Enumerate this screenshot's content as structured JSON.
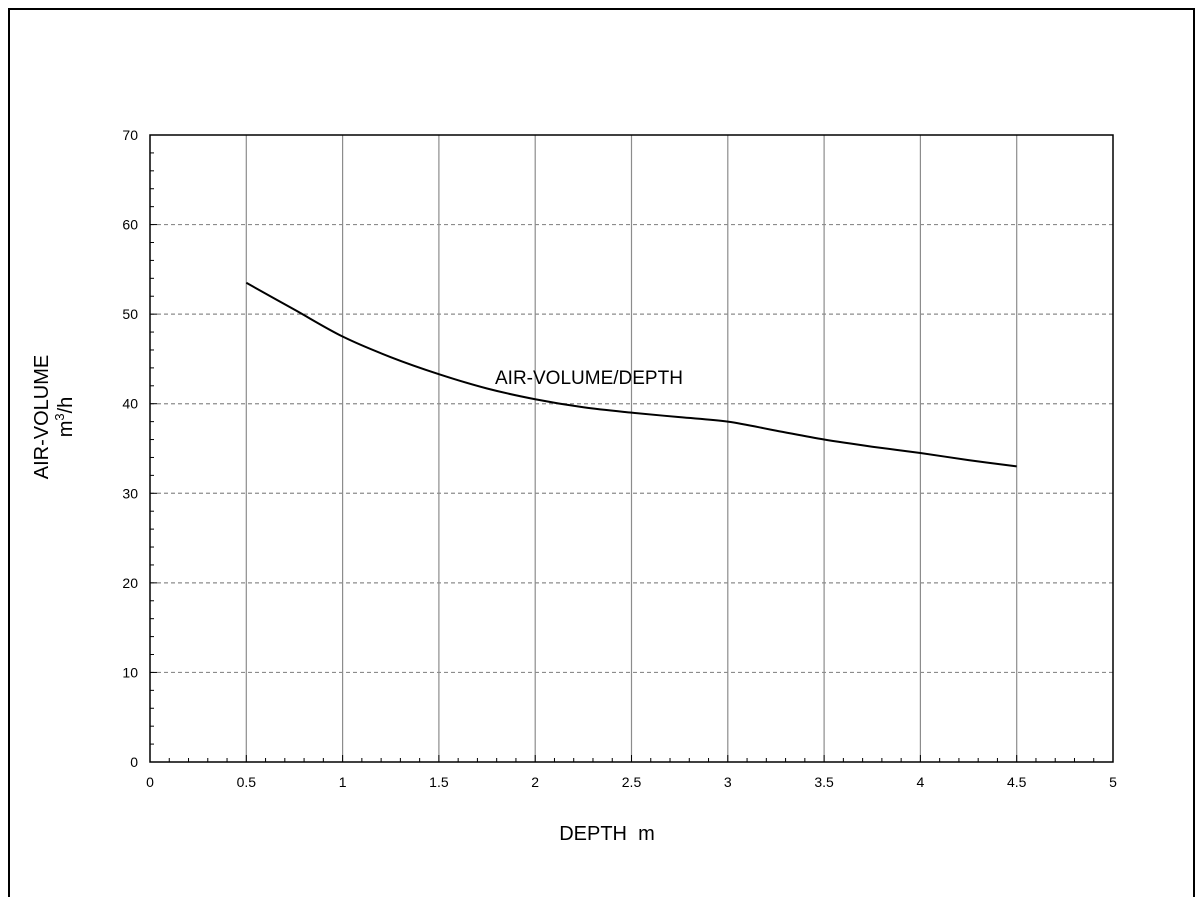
{
  "chart_data": {
    "type": "line",
    "xlabel": "DEPTH  m",
    "ylabel_line1": "AIR-VOLUME",
    "ylabel_line2_base": "m",
    "ylabel_line2_sup": "3",
    "ylabel_line2_tail": "/h",
    "annotation": "AIR-VOLUME/DEPTH",
    "xlim": [
      0,
      5
    ],
    "ylim": [
      0,
      70
    ],
    "x_ticks": [
      0,
      0.5,
      1,
      1.5,
      2,
      2.5,
      3,
      3.5,
      4,
      4.5,
      5
    ],
    "x_tick_labels": [
      "0",
      "0.5",
      "1",
      "1.5",
      "2",
      "2.5",
      "3",
      "3.5",
      "4",
      "4.5",
      "5"
    ],
    "y_ticks": [
      0,
      10,
      20,
      30,
      40,
      50,
      60,
      70
    ],
    "y_tick_labels": [
      "0",
      "10",
      "20",
      "30",
      "40",
      "50",
      "60",
      "70"
    ],
    "grid": {
      "vertical": "solid",
      "horizontal": "dashed"
    },
    "series": [
      {
        "x": [
          0.5,
          0.75,
          1.0,
          1.25,
          1.5,
          1.75,
          2.0,
          2.25,
          2.5,
          2.75,
          3.0,
          3.25,
          3.5,
          3.75,
          4.0,
          4.25,
          4.5
        ],
        "y": [
          53.5,
          50.5,
          47.5,
          45.2,
          43.3,
          41.7,
          40.5,
          39.6,
          39.0,
          38.5,
          38.0,
          37.0,
          36.0,
          35.2,
          34.5,
          33.7,
          33.0
        ]
      }
    ],
    "colors": {
      "line": "#000000",
      "grid": "#8c8c8c",
      "axis": "#000000"
    }
  }
}
